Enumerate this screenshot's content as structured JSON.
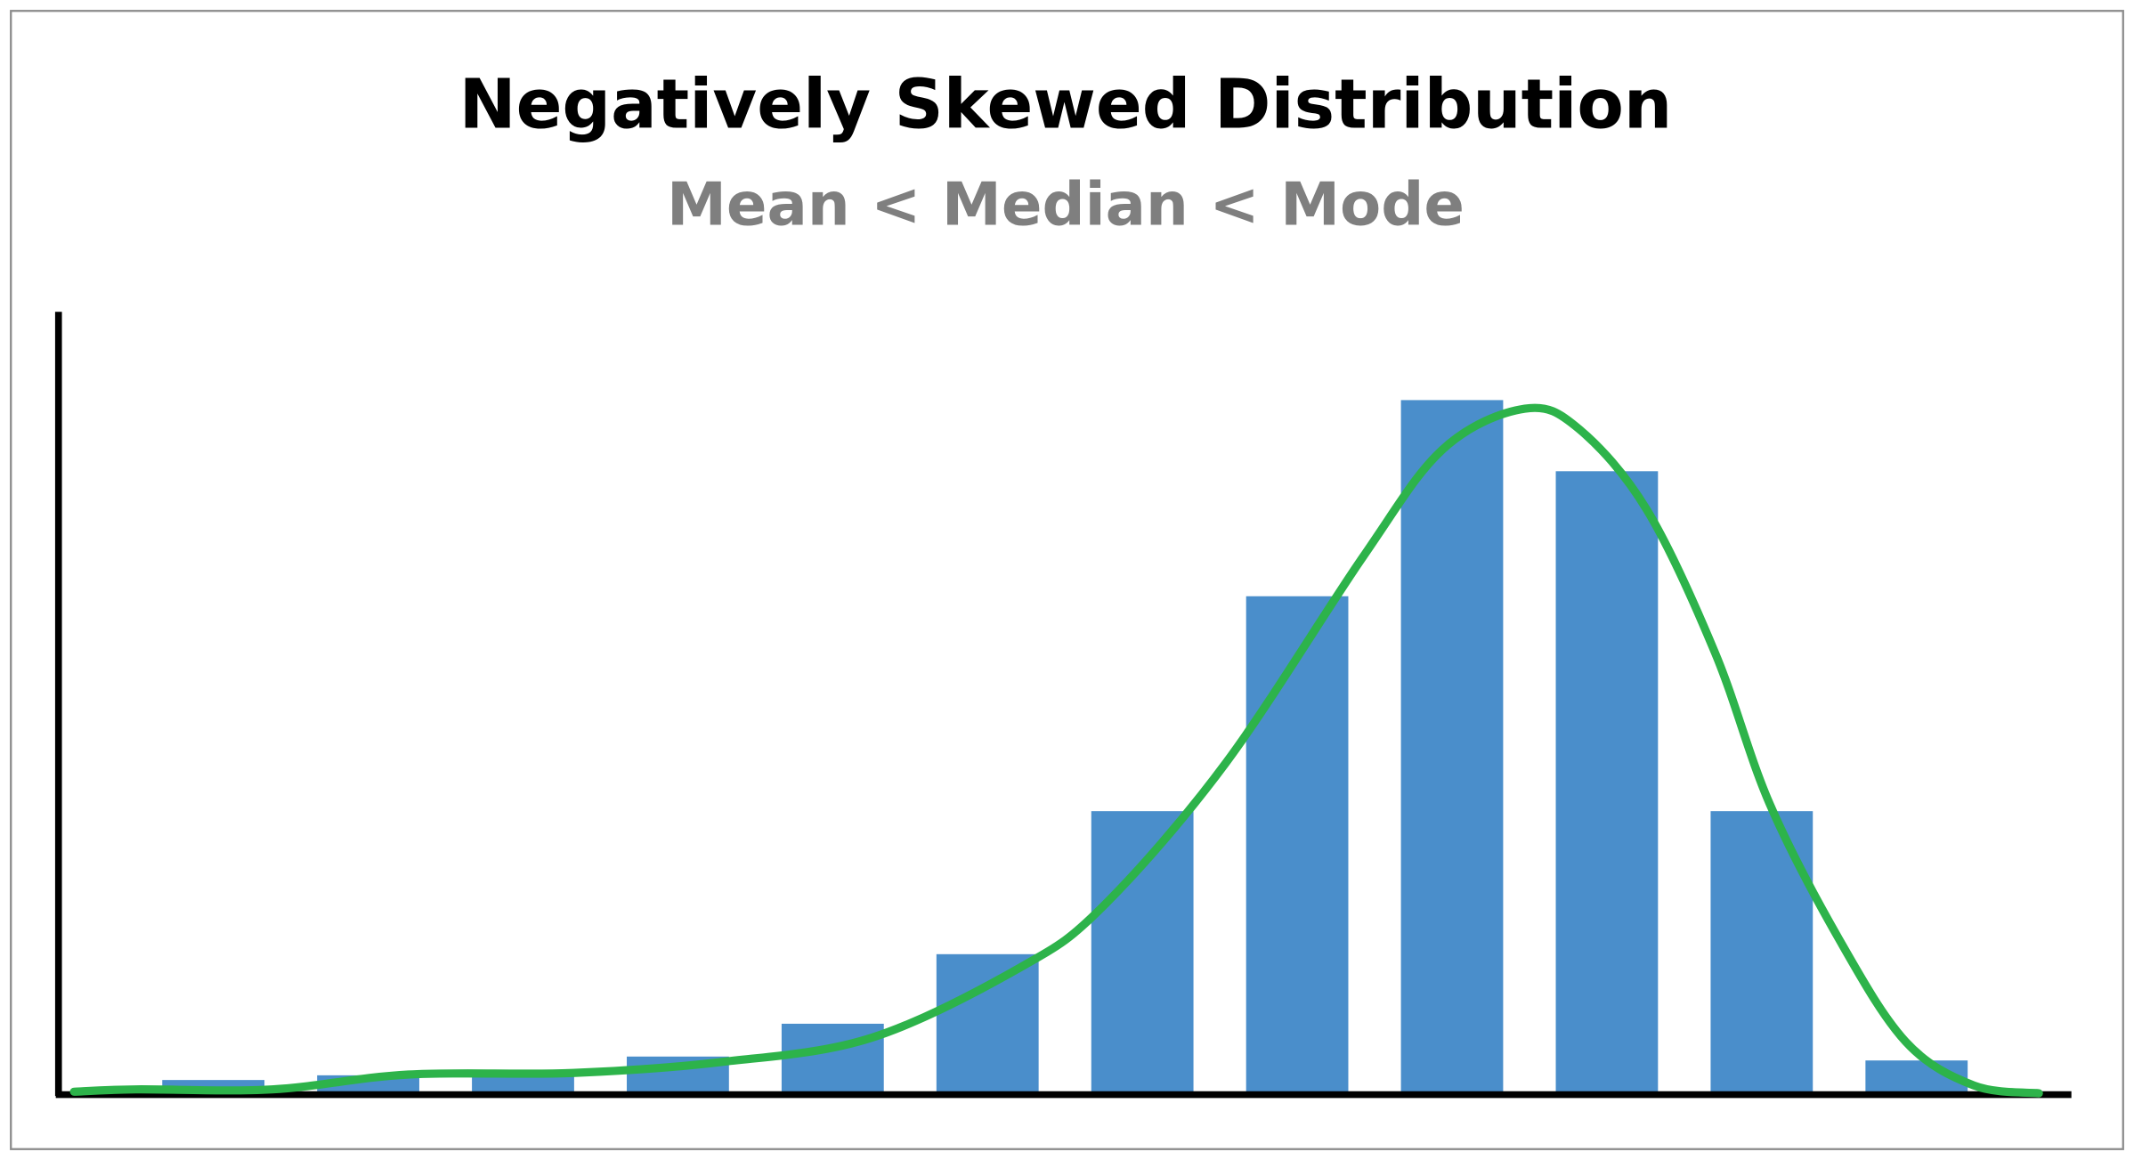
{
  "chart_data": {
    "type": "bar",
    "title": "Negatively Skewed Distribution",
    "subtitle": "Mean < Median < Mode",
    "xlim": [
      0,
      13
    ],
    "ylim": [
      0,
      100
    ],
    "series": [
      {
        "type": "bar",
        "color": "#4a8ecb",
        "x": [
          1,
          2,
          3,
          4,
          5,
          6,
          7,
          8,
          9,
          10,
          11,
          12
        ],
        "values": [
          1.7,
          2.3,
          2.4,
          4.7,
          8.9,
          17.8,
          36.1,
          63.6,
          88.7,
          79.6,
          36.1,
          4.2
        ]
      },
      {
        "type": "line",
        "color": "#2db34a",
        "x": [
          0.1,
          0.5,
          1.38,
          2.26,
          3.32,
          4.28,
          5.25,
          6.22,
          6.75,
          7.54,
          8.42,
          8.94,
          9.47,
          9.82,
          10.26,
          10.7,
          11.05,
          11.5,
          11.93,
          12.37,
          12.79
        ],
        "values": [
          0.2,
          0.5,
          0.5,
          2.4,
          2.6,
          4.0,
          7.1,
          16.2,
          24.0,
          42.3,
          68.5,
          82.4,
          87.6,
          85.0,
          74.6,
          56.3,
          37.1,
          19.7,
          6.6,
          1.0,
          0
        ]
      }
    ]
  }
}
